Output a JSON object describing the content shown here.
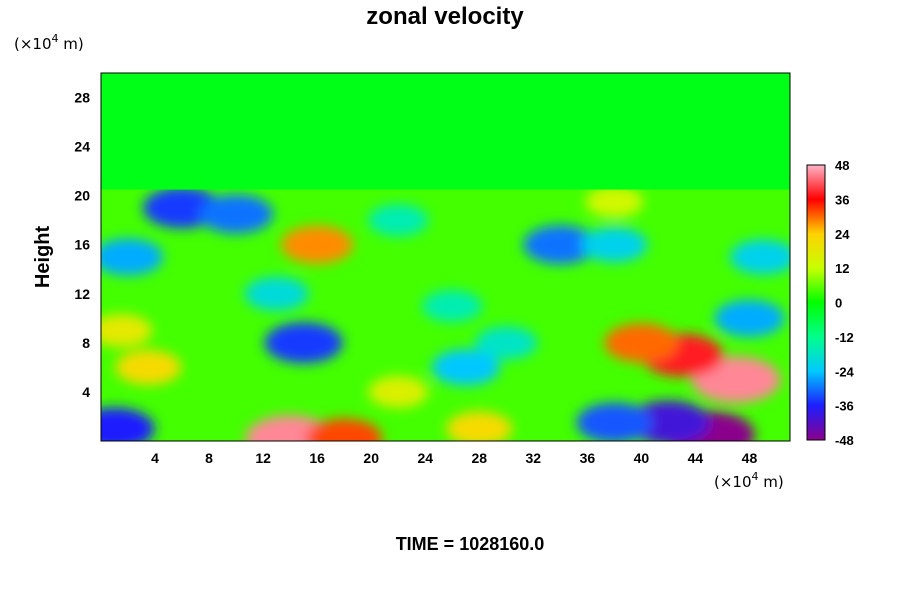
{
  "chart_data": {
    "type": "heatmap",
    "title": "zonal velocity",
    "ylabel": "Height",
    "xlabel": "",
    "y_unit_prefix": "(×10",
    "y_unit_exp": "4",
    "y_unit_suffix": " m)",
    "x_unit_prefix": "(×10",
    "x_unit_exp": "4",
    "x_unit_suffix": " m)",
    "xlim": [
      0,
      51
    ],
    "ylim": [
      0,
      30
    ],
    "x_ticks": [
      "4",
      "8",
      "12",
      "16",
      "20",
      "24",
      "28",
      "32",
      "36",
      "40",
      "44",
      "48"
    ],
    "x_tick_values": [
      4,
      8,
      12,
      16,
      20,
      24,
      28,
      32,
      36,
      40,
      44,
      48
    ],
    "y_ticks": [
      "4",
      "8",
      "12",
      "16",
      "20",
      "24",
      "28"
    ],
    "y_tick_values": [
      4,
      8,
      12,
      16,
      20,
      24,
      28
    ],
    "colorbar": {
      "ticks": [
        "48",
        "36",
        "24",
        "12",
        "0",
        "-12",
        "-24",
        "-36",
        "-48"
      ],
      "tick_values": [
        48,
        36,
        24,
        12,
        0,
        -12,
        -24,
        -36,
        -48
      ],
      "range": [
        -48,
        48
      ],
      "colors_low_to_high": [
        "#8b008b",
        "#1e1eff",
        "#00c8ff",
        "#00ff8c",
        "#00ff00",
        "#c8ff00",
        "#ffd200",
        "#ff0000",
        "#ffb4c8"
      ]
    },
    "blobs": [
      {
        "x": 47,
        "y": 5,
        "value": 45
      },
      {
        "x": 43,
        "y": 7,
        "value": 38
      },
      {
        "x": 40,
        "y": 8,
        "value": 30
      },
      {
        "x": 14,
        "y": 0.2,
        "value": 45
      },
      {
        "x": 18,
        "y": 0.2,
        "value": 32
      },
      {
        "x": 3.5,
        "y": 6,
        "value": 22
      },
      {
        "x": 1.5,
        "y": 9,
        "value": 18
      },
      {
        "x": 16,
        "y": 16,
        "value": 28
      },
      {
        "x": 28,
        "y": 1,
        "value": 22
      },
      {
        "x": 22,
        "y": 4,
        "value": 16
      },
      {
        "x": 38,
        "y": 19.5,
        "value": 14
      },
      {
        "x": 45,
        "y": 0.5,
        "value": -48
      },
      {
        "x": 42,
        "y": 1.5,
        "value": -40
      },
      {
        "x": 38,
        "y": 1.5,
        "value": -32
      },
      {
        "x": 15,
        "y": 8,
        "value": -34
      },
      {
        "x": 13,
        "y": 12,
        "value": -20
      },
      {
        "x": 6,
        "y": 19,
        "value": -34
      },
      {
        "x": 10,
        "y": 18.5,
        "value": -30
      },
      {
        "x": 2,
        "y": 15,
        "value": -26
      },
      {
        "x": 34,
        "y": 16,
        "value": -30
      },
      {
        "x": 38,
        "y": 16,
        "value": -22
      },
      {
        "x": 48,
        "y": 10,
        "value": -26
      },
      {
        "x": 30,
        "y": 8,
        "value": -18
      },
      {
        "x": 27,
        "y": 6,
        "value": -24
      },
      {
        "x": 1,
        "y": 1,
        "value": -36
      },
      {
        "x": 26,
        "y": 11,
        "value": -16
      },
      {
        "x": 49,
        "y": 15,
        "value": -22
      },
      {
        "x": 22,
        "y": 18,
        "value": -16
      }
    ],
    "upper_layer": {
      "from_y": 20.5,
      "value": -2
    },
    "time_label": "TIME = 1028160.0"
  }
}
